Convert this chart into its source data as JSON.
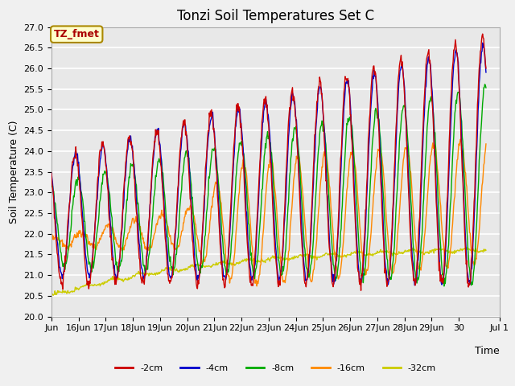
{
  "title": "Tonzi Soil Temperatures Set C",
  "xlabel": "Time",
  "ylabel": "Soil Temperature (C)",
  "ylim": [
    20.0,
    27.0
  ],
  "legend_labels": [
    "-2cm",
    "-4cm",
    "-8cm",
    "-16cm",
    "-32cm"
  ],
  "legend_colors": [
    "#cc0000",
    "#0000cc",
    "#00aa00",
    "#ff8800",
    "#cccc00"
  ],
  "annotation_text": "TZ_fmet",
  "annotation_color": "#aa0000",
  "annotation_bg": "#ffffcc",
  "annotation_edge": "#aa8800",
  "plot_bg_color": "#e8e8e8",
  "fig_bg_color": "#f0f0f0",
  "grid_color": "#ffffff",
  "title_fontsize": 12,
  "tick_fontsize": 8,
  "axis_label_fontsize": 9,
  "line_width": 1.0
}
